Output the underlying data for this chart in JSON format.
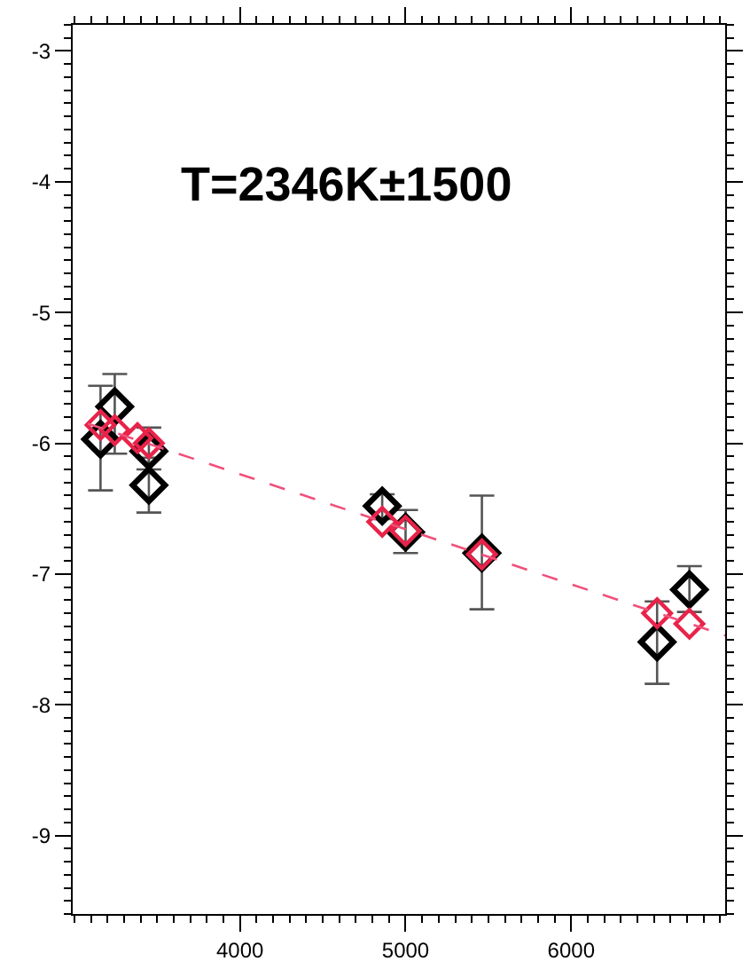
{
  "chart_data": {
    "type": "scatter",
    "annotations": [
      "T=2346K±1500"
    ],
    "xlim": [
      2990,
      6930
    ],
    "ylim": [
      -9.6,
      -2.8
    ],
    "xticks": [
      4000,
      5000,
      6000
    ],
    "yticks": [
      -9,
      -8,
      -7,
      -6,
      -5,
      -4,
      -3
    ],
    "marker": "diamond",
    "series": [
      {
        "color": "#000000",
        "x": [
          3158,
          3244,
          3450,
          3450,
          4859,
          5000,
          5461,
          6519,
          6714
        ],
        "values": [
          -5.97,
          -5.72,
          -6.06,
          -6.32,
          -6.48,
          -6.68,
          -6.84,
          -7.52,
          -7.12
        ],
        "errors": [
          [
            -6.36,
            -5.56
          ],
          [
            -6.08,
            -5.47
          ],
          [
            -6.2,
            -5.88
          ],
          [
            -6.53,
            -6.11
          ],
          [
            -6.58,
            -6.39
          ],
          [
            -6.84,
            -6.51
          ],
          [
            -7.27,
            -6.4
          ],
          [
            -7.84,
            -7.21
          ],
          [
            -7.29,
            -6.94
          ]
        ]
      },
      {
        "color": "#e8234a",
        "x": [
          3158,
          3244,
          3381,
          3450,
          4859,
          5000,
          5461,
          6519,
          6714
        ],
        "values": [
          -5.86,
          -5.9,
          -5.96,
          -6.0,
          -6.6,
          -6.67,
          -6.85,
          -7.3,
          -7.38
        ]
      },
      {
        "type": "line",
        "color": "#f0507a",
        "line_style": "dashed",
        "marker": "none",
        "x": [
          3082,
          6930
        ],
        "values": [
          -5.85,
          -7.47
        ]
      }
    ]
  }
}
